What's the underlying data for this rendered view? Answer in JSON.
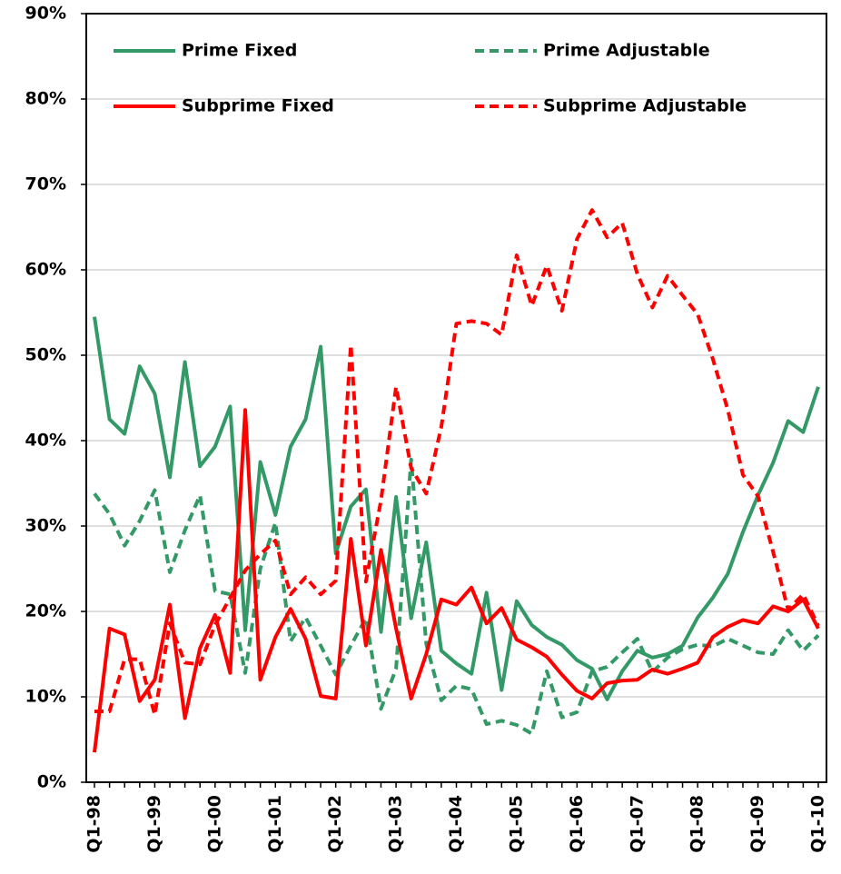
{
  "chart_data": {
    "type": "line",
    "categories": [
      "Q1-98",
      null,
      null,
      null,
      "Q1-99",
      null,
      null,
      null,
      "Q1-00",
      null,
      null,
      null,
      "Q1-01",
      null,
      null,
      null,
      "Q1-02",
      null,
      null,
      null,
      "Q1-03",
      null,
      null,
      null,
      "Q1-04",
      null,
      null,
      null,
      "Q1-05",
      null,
      null,
      null,
      "Q1-06",
      null,
      null,
      null,
      "Q1-07",
      null,
      null,
      null,
      "Q1-08",
      null,
      null,
      null,
      "Q1-09",
      null,
      null,
      null,
      "Q1-10"
    ],
    "ylim": [
      0,
      90
    ],
    "yticks": [
      {
        "value": 0,
        "label": "0%"
      },
      {
        "value": 10,
        "label": "10%"
      },
      {
        "value": 20,
        "label": "20%"
      },
      {
        "value": 30,
        "label": "30%"
      },
      {
        "value": 40,
        "label": "40%"
      },
      {
        "value": 50,
        "label": "50%"
      },
      {
        "value": 60,
        "label": "60%"
      },
      {
        "value": 70,
        "label": "70%"
      },
      {
        "value": 80,
        "label": "80%"
      },
      {
        "value": 90,
        "label": "90%"
      }
    ],
    "grid": true,
    "legend": "top",
    "series": [
      {
        "name": "Prime Fixed",
        "color": "#339966",
        "style": "solid",
        "values": [
          54.5,
          42.5,
          40.8,
          48.7,
          45.5,
          35.7,
          49.2,
          37,
          39.3,
          44,
          17.8,
          37.5,
          31.3,
          39.3,
          42.5,
          51,
          26.8,
          32.3,
          34.3,
          17.6,
          33.4,
          19.2,
          28.1,
          15.4,
          13.9,
          12.7,
          22.2,
          10.8,
          21.2,
          18.4,
          17,
          16.1,
          14.3,
          13.3,
          9.7,
          13,
          15.4,
          14.6,
          15,
          16,
          19.3,
          21.6,
          24.4,
          29.3,
          33.6,
          37.4,
          42.3,
          41,
          46.3
        ]
      },
      {
        "name": "Prime Adjustable",
        "color": "#339966",
        "style": "dashed",
        "values": [
          33.8,
          31.4,
          27.7,
          30.6,
          34.2,
          24.6,
          29.5,
          33.6,
          22.4,
          22,
          12.8,
          25,
          30.4,
          16.5,
          19.3,
          16,
          12.6,
          16,
          19.2,
          8.6,
          13.3,
          37.8,
          16.2,
          9.6,
          11.3,
          10.9,
          6.8,
          7.2,
          6.7,
          5.7,
          13,
          7.6,
          8.2,
          13,
          13.5,
          15.2,
          16.8,
          12.9,
          14.6,
          15.6,
          16.1,
          15.9,
          16.8,
          16,
          15.2,
          15,
          17.8,
          15.4,
          17.2
        ]
      },
      {
        "name": "Subprime Fixed",
        "color": "#ff0000",
        "style": "solid",
        "values": [
          3.5,
          18,
          17.3,
          9.5,
          12,
          20.8,
          7.5,
          15.7,
          19.6,
          12.8,
          43.6,
          12,
          17,
          20.3,
          16.8,
          10.1,
          9.8,
          28.5,
          16,
          27.2,
          18,
          9.8,
          15,
          21.4,
          20.8,
          22.8,
          18.6,
          20.4,
          16.7,
          15.8,
          14.7,
          12.6,
          10.7,
          9.8,
          11.6,
          11.9,
          12,
          13.2,
          12.7,
          13.3,
          14,
          17,
          18.2,
          19,
          18.6,
          20.6,
          20,
          21.4,
          18
        ]
      },
      {
        "name": "Subprime Adjustable",
        "color": "#ff0000",
        "style": "dashed",
        "values": [
          8.3,
          8.3,
          14.4,
          14.4,
          7.9,
          18.6,
          14,
          13.8,
          18.4,
          21.6,
          24.8,
          26.7,
          28.3,
          22,
          24,
          22,
          23.6,
          51.2,
          23.5,
          33,
          46.3,
          36.8,
          33.8,
          41.6,
          53.7,
          54,
          53.7,
          52.4,
          61.7,
          55.8,
          60.5,
          55.2,
          63.6,
          67,
          63.8,
          65.5,
          59.5,
          55.6,
          59.3,
          57,
          54.8,
          49.6,
          43.6,
          36,
          33.5,
          27,
          20.2,
          22,
          18.3
        ]
      }
    ]
  }
}
